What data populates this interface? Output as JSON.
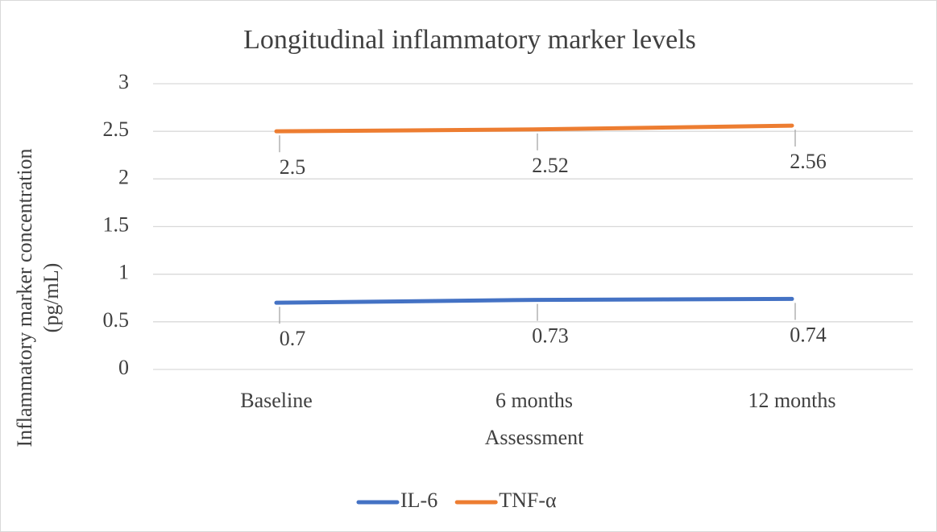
{
  "chart_data": {
    "type": "line",
    "title": "Longitudinal inflammatory marker levels",
    "x_label": "Assessment",
    "y_label": [
      "Inflammatory marker concentration",
      "(pg/mL)"
    ],
    "categories": [
      "Baseline",
      "6 months",
      "12 months"
    ],
    "series": [
      {
        "name": "IL-6",
        "color": "#4472c4",
        "values": [
          0.7,
          0.73,
          0.74
        ]
      },
      {
        "name": "TNF-α",
        "color": "#ed7d31",
        "values": [
          2.5,
          2.52,
          2.56
        ]
      }
    ],
    "ylim": [
      0,
      3
    ],
    "yticks": [
      0,
      0.5,
      1,
      1.5,
      2,
      2.5,
      3
    ],
    "grid": true,
    "legend": "bottom"
  }
}
